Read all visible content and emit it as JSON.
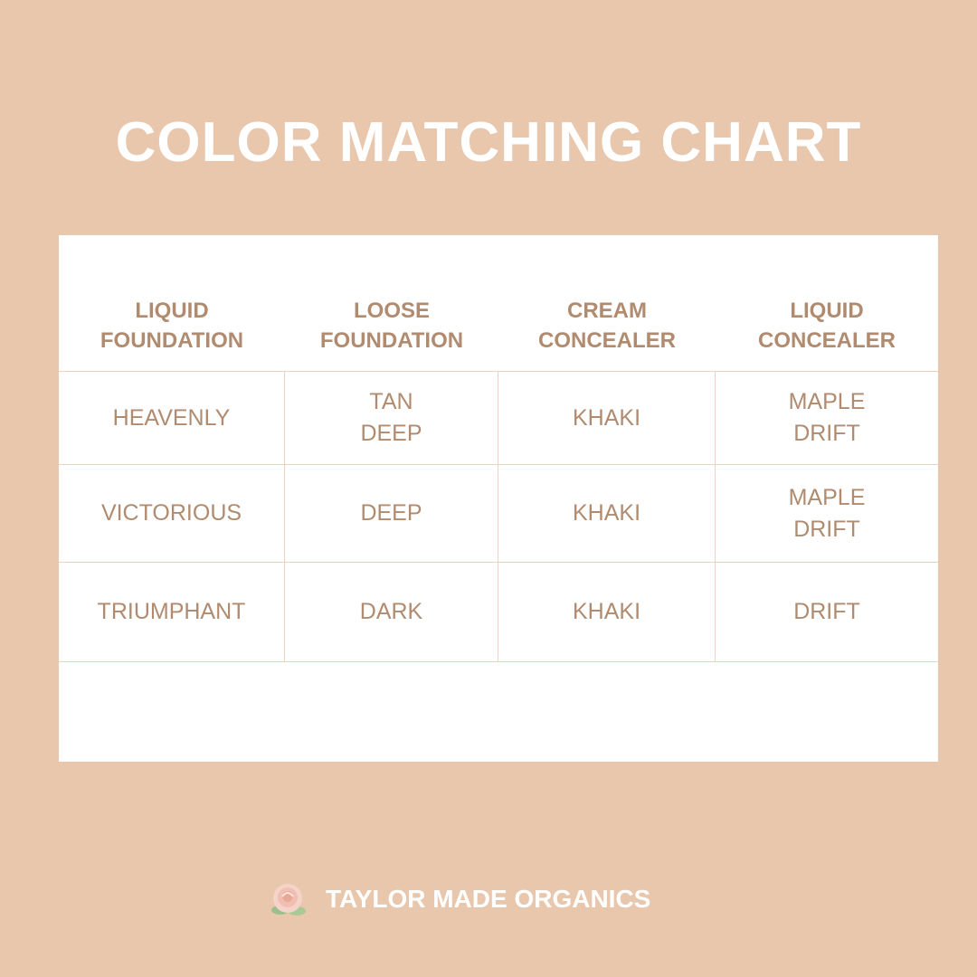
{
  "title": "COLOR MATCHING CHART",
  "table": {
    "headers": [
      "LIQUID\nFOUNDATION",
      "LOOSE\nFOUNDATION",
      "CREAM\nCONCEALER",
      "LIQUID\nCONCEALER"
    ],
    "rows": [
      [
        "HEAVENLY",
        "TAN\nDEEP",
        "KHAKI",
        "MAPLE\nDRIFT"
      ],
      [
        "VICTORIOUS",
        "DEEP",
        "KHAKI",
        "MAPLE\nDRIFT"
      ],
      [
        "TRIUMPHANT",
        "DARK",
        "KHAKI",
        "DRIFT"
      ]
    ]
  },
  "footer": {
    "brand": "TAYLOR MADE ORGANICS"
  }
}
